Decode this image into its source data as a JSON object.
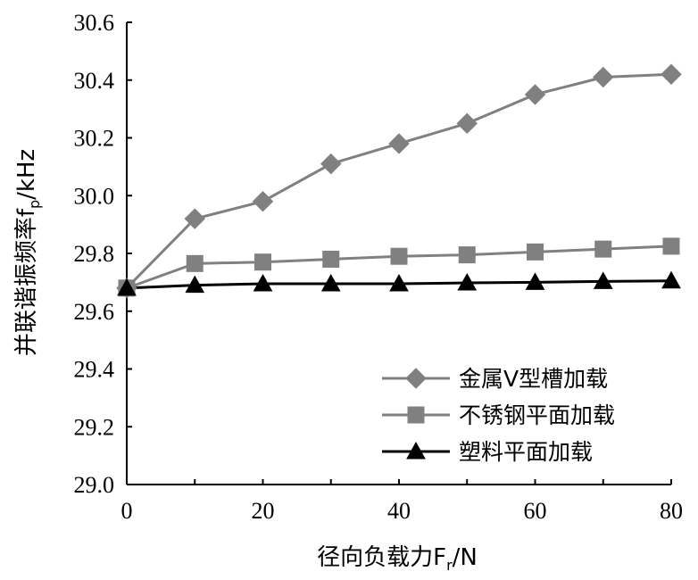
{
  "chart_data": {
    "type": "line",
    "xlabel": "径向负载力F",
    "xlabel_sub": "r",
    "xlabel_unit": "/N",
    "ylabel": "并联谐振频率f",
    "ylabel_sub": "p",
    "ylabel_unit": "/kHz",
    "xlim": [
      0,
      80
    ],
    "ylim": [
      29.0,
      30.6
    ],
    "xticks": [
      0,
      20,
      40,
      60,
      80
    ],
    "xtick_labels": [
      "0",
      "20",
      "40",
      "60",
      "80"
    ],
    "yticks": [
      29.0,
      29.2,
      29.4,
      29.6,
      29.8,
      30.0,
      30.2,
      30.4,
      30.6
    ],
    "ytick_labels": [
      "29.0",
      "29.2",
      "29.4",
      "29.6",
      "29.8",
      "30.0",
      "30.2",
      "30.4",
      "30.6"
    ],
    "grid": false,
    "legend_position": "bottom-right",
    "x": [
      0,
      10,
      20,
      30,
      40,
      50,
      60,
      70,
      80
    ],
    "series": [
      {
        "name": "金属V型槽加载",
        "marker": "diamond",
        "color": "#808080",
        "values": [
          29.68,
          29.92,
          29.98,
          30.11,
          30.18,
          30.25,
          30.35,
          30.41,
          30.42
        ]
      },
      {
        "name": "不锈钢平面加载",
        "marker": "square",
        "color": "#808080",
        "values": [
          29.68,
          29.765,
          29.77,
          29.78,
          29.79,
          29.795,
          29.805,
          29.815,
          29.825
        ]
      },
      {
        "name": "塑料平面加载",
        "marker": "triangle",
        "color": "#000000",
        "values": [
          29.68,
          29.69,
          29.695,
          29.695,
          29.695,
          29.698,
          29.7,
          29.703,
          29.705
        ]
      }
    ]
  }
}
